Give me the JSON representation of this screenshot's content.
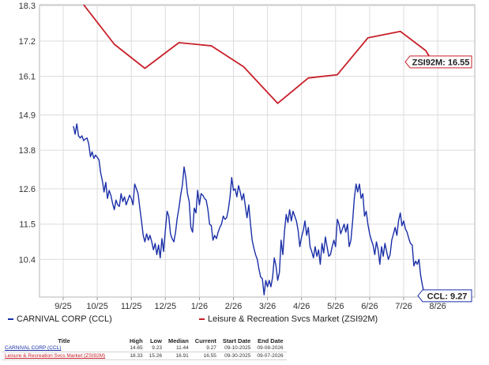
{
  "chart_data": {
    "type": "line",
    "x_tick_labels": [
      "9/25",
      "10/25",
      "11/25",
      "12/25",
      "1/26",
      "2/26",
      "3/26",
      "4/26",
      "5/26",
      "6/26",
      "7/26",
      "8/26"
    ],
    "y_tick_labels": [
      "18.3",
      "17.2",
      "16.1",
      "14.9",
      "13.8",
      "12.6",
      "11.5",
      "10.4"
    ],
    "ylim": [
      9.23,
      18.33
    ],
    "grid": true,
    "series": [
      {
        "name": "CARNIVAL CORP (CCL)",
        "color": "#1a2fa8",
        "end_label": "CCL: 9.27",
        "values": [
          [
            0.3,
            14.55
          ],
          [
            0.35,
            14.3
          ],
          [
            0.4,
            14.62
          ],
          [
            0.45,
            14.25
          ],
          [
            0.5,
            14.18
          ],
          [
            0.55,
            14.25
          ],
          [
            0.6,
            14.1
          ],
          [
            0.65,
            14.15
          ],
          [
            0.7,
            14.18
          ],
          [
            0.75,
            14.0
          ],
          [
            0.8,
            13.6
          ],
          [
            0.85,
            13.75
          ],
          [
            0.9,
            13.55
          ],
          [
            0.95,
            13.65
          ],
          [
            1.0,
            13.58
          ],
          [
            1.05,
            13.5
          ],
          [
            1.1,
            13.1
          ],
          [
            1.15,
            12.85
          ],
          [
            1.2,
            12.5
          ],
          [
            1.25,
            12.8
          ],
          [
            1.3,
            12.3
          ],
          [
            1.35,
            12.55
          ],
          [
            1.4,
            12.4
          ],
          [
            1.45,
            12.15
          ],
          [
            1.5,
            11.95
          ],
          [
            1.55,
            12.25
          ],
          [
            1.6,
            12.1
          ],
          [
            1.65,
            12.05
          ],
          [
            1.7,
            12.45
          ],
          [
            1.75,
            12.2
          ],
          [
            1.8,
            12.35
          ],
          [
            1.85,
            12.1
          ],
          [
            1.9,
            12.25
          ],
          [
            1.95,
            12.4
          ],
          [
            2.0,
            12.3
          ],
          [
            2.05,
            12.1
          ],
          [
            2.1,
            12.75
          ],
          [
            2.15,
            12.6
          ],
          [
            2.2,
            12.45
          ],
          [
            2.25,
            12.0
          ],
          [
            2.3,
            11.6
          ],
          [
            2.35,
            11.15
          ],
          [
            2.4,
            10.95
          ],
          [
            2.45,
            11.2
          ],
          [
            2.5,
            11.0
          ],
          [
            2.55,
            11.15
          ],
          [
            2.6,
            10.95
          ],
          [
            2.65,
            10.7
          ],
          [
            2.7,
            10.9
          ],
          [
            2.75,
            10.55
          ],
          [
            2.8,
            10.85
          ],
          [
            2.85,
            10.45
          ],
          [
            2.9,
            11.05
          ],
          [
            2.95,
            10.65
          ],
          [
            3.0,
            11.3
          ],
          [
            3.05,
            11.9
          ],
          [
            3.1,
            11.75
          ],
          [
            3.15,
            11.2
          ],
          [
            3.2,
            11.05
          ],
          [
            3.25,
            10.95
          ],
          [
            3.3,
            11.25
          ],
          [
            3.35,
            11.7
          ],
          [
            3.4,
            12.0
          ],
          [
            3.45,
            12.4
          ],
          [
            3.5,
            12.7
          ],
          [
            3.55,
            13.28
          ],
          [
            3.6,
            12.95
          ],
          [
            3.65,
            12.45
          ],
          [
            3.7,
            12.2
          ],
          [
            3.75,
            11.4
          ],
          [
            3.8,
            11.25
          ],
          [
            3.85,
            12.0
          ],
          [
            3.9,
            11.85
          ],
          [
            3.95,
            12.55
          ],
          [
            4.0,
            12.1
          ],
          [
            4.05,
            12.45
          ],
          [
            4.1,
            12.4
          ],
          [
            4.15,
            12.3
          ],
          [
            4.2,
            12.25
          ],
          [
            4.25,
            11.95
          ],
          [
            4.3,
            11.5
          ],
          [
            4.35,
            11.45
          ],
          [
            4.4,
            11.0
          ],
          [
            4.45,
            11.15
          ],
          [
            4.5,
            11.05
          ],
          [
            4.55,
            11.25
          ],
          [
            4.6,
            11.4
          ],
          [
            4.65,
            11.5
          ],
          [
            4.7,
            11.75
          ],
          [
            4.75,
            11.65
          ],
          [
            4.8,
            11.7
          ],
          [
            4.85,
            11.95
          ],
          [
            4.9,
            12.35
          ],
          [
            4.95,
            12.95
          ],
          [
            5.0,
            12.55
          ],
          [
            5.05,
            12.6
          ],
          [
            5.1,
            12.35
          ],
          [
            5.15,
            12.7
          ],
          [
            5.2,
            12.5
          ],
          [
            5.25,
            12.25
          ],
          [
            5.3,
            12.45
          ],
          [
            5.35,
            12.05
          ],
          [
            5.4,
            11.7
          ],
          [
            5.45,
            12.1
          ],
          [
            5.5,
            11.5
          ],
          [
            5.55,
            11.0
          ],
          [
            5.6,
            10.75
          ],
          [
            5.65,
            10.55
          ],
          [
            5.7,
            10.4
          ],
          [
            5.75,
            10.1
          ],
          [
            5.8,
            9.85
          ],
          [
            5.85,
            9.8
          ],
          [
            5.9,
            9.3
          ],
          [
            5.95,
            9.75
          ],
          [
            6.0,
            9.55
          ],
          [
            6.05,
            9.75
          ],
          [
            6.1,
            9.55
          ],
          [
            6.15,
            9.85
          ],
          [
            6.2,
            10.45
          ],
          [
            6.25,
            10.2
          ],
          [
            6.3,
            9.75
          ],
          [
            6.35,
            10.0
          ],
          [
            6.4,
            11.0
          ],
          [
            6.45,
            10.55
          ],
          [
            6.5,
            11.3
          ],
          [
            6.55,
            11.8
          ],
          [
            6.6,
            11.55
          ],
          [
            6.65,
            11.95
          ],
          [
            6.7,
            11.6
          ],
          [
            6.75,
            11.9
          ],
          [
            6.8,
            11.75
          ],
          [
            6.85,
            11.6
          ],
          [
            6.9,
            11.3
          ],
          [
            6.95,
            10.8
          ],
          [
            7.0,
            11.1
          ],
          [
            7.05,
            11.3
          ],
          [
            7.1,
            11.6
          ],
          [
            7.15,
            11.15
          ],
          [
            7.2,
            11.4
          ],
          [
            7.25,
            10.8
          ],
          [
            7.3,
            10.65
          ],
          [
            7.35,
            10.45
          ],
          [
            7.4,
            10.8
          ],
          [
            7.45,
            10.5
          ],
          [
            7.5,
            10.7
          ],
          [
            7.55,
            10.25
          ],
          [
            7.6,
            10.9
          ],
          [
            7.65,
            10.6
          ],
          [
            7.7,
            11.1
          ],
          [
            7.75,
            10.8
          ],
          [
            7.8,
            10.5
          ],
          [
            7.85,
            10.55
          ],
          [
            7.9,
            10.8
          ],
          [
            7.95,
            11.0
          ],
          [
            8.0,
            10.8
          ],
          [
            8.05,
            11.65
          ],
          [
            8.1,
            11.5
          ],
          [
            8.15,
            11.2
          ],
          [
            8.2,
            11.35
          ],
          [
            8.25,
            11.5
          ],
          [
            8.3,
            11.25
          ],
          [
            8.35,
            11.5
          ],
          [
            8.4,
            10.8
          ],
          [
            8.45,
            11.0
          ],
          [
            8.5,
            11.6
          ],
          [
            8.55,
            12.3
          ],
          [
            8.6,
            12.75
          ],
          [
            8.65,
            12.5
          ],
          [
            8.7,
            12.75
          ],
          [
            8.75,
            12.3
          ],
          [
            8.8,
            12.45
          ],
          [
            8.85,
            11.75
          ],
          [
            8.9,
            11.9
          ],
          [
            8.95,
            11.5
          ],
          [
            9.0,
            11.2
          ],
          [
            9.05,
            11.0
          ],
          [
            9.1,
            10.85
          ],
          [
            9.15,
            10.55
          ],
          [
            9.2,
            10.95
          ],
          [
            9.25,
            10.7
          ],
          [
            9.3,
            10.25
          ],
          [
            9.35,
            10.8
          ],
          [
            9.4,
            10.5
          ],
          [
            9.45,
            10.9
          ],
          [
            9.5,
            10.65
          ],
          [
            9.55,
            10.4
          ],
          [
            9.6,
            10.55
          ],
          [
            9.65,
            11.0
          ],
          [
            9.7,
            11.2
          ],
          [
            9.75,
            11.4
          ],
          [
            9.8,
            11.15
          ],
          [
            9.85,
            11.6
          ],
          [
            9.9,
            11.85
          ],
          [
            9.95,
            11.45
          ],
          [
            10.0,
            11.6
          ],
          [
            10.05,
            11.35
          ],
          [
            10.1,
            11.25
          ],
          [
            10.15,
            11.05
          ],
          [
            10.2,
            10.9
          ],
          [
            10.25,
            10.85
          ],
          [
            10.3,
            10.2
          ],
          [
            10.35,
            10.35
          ],
          [
            10.4,
            10.25
          ],
          [
            10.45,
            10.4
          ],
          [
            10.5,
            9.9
          ],
          [
            10.55,
            9.6
          ],
          [
            10.6,
            9.35
          ],
          [
            10.65,
            9.27
          ]
        ]
      },
      {
        "name": "Leisure & Recreation Svcs Market (ZSI92M)",
        "color": "#c8202a",
        "end_label": "ZSI92M: 16.55",
        "values": [
          [
            0.6,
            18.33
          ],
          [
            1.5,
            17.1
          ],
          [
            2.4,
            16.35
          ],
          [
            3.4,
            17.15
          ],
          [
            4.35,
            17.05
          ],
          [
            5.3,
            16.4
          ],
          [
            6.3,
            15.26
          ],
          [
            7.2,
            16.05
          ],
          [
            8.05,
            16.15
          ],
          [
            8.95,
            17.3
          ],
          [
            9.9,
            17.5
          ],
          [
            10.65,
            16.9
          ],
          [
            10.85,
            16.55
          ]
        ]
      }
    ]
  },
  "summary_table": {
    "headers": [
      "Title",
      "High",
      "Low",
      "Median",
      "Current",
      "Start Date",
      "End Date"
    ],
    "rows": [
      [
        "CARNIVAL CORP (CCL)",
        "14.65",
        "9.23",
        "11.44",
        "9.27",
        "09-10-2025",
        "09-08-2026"
      ],
      [
        "Leisure & Recreation Svcs Market (ZSI92M)",
        "18.33",
        "15.26",
        "16.91",
        "16.55",
        "09-30-2025",
        "09-07-2026"
      ]
    ]
  }
}
